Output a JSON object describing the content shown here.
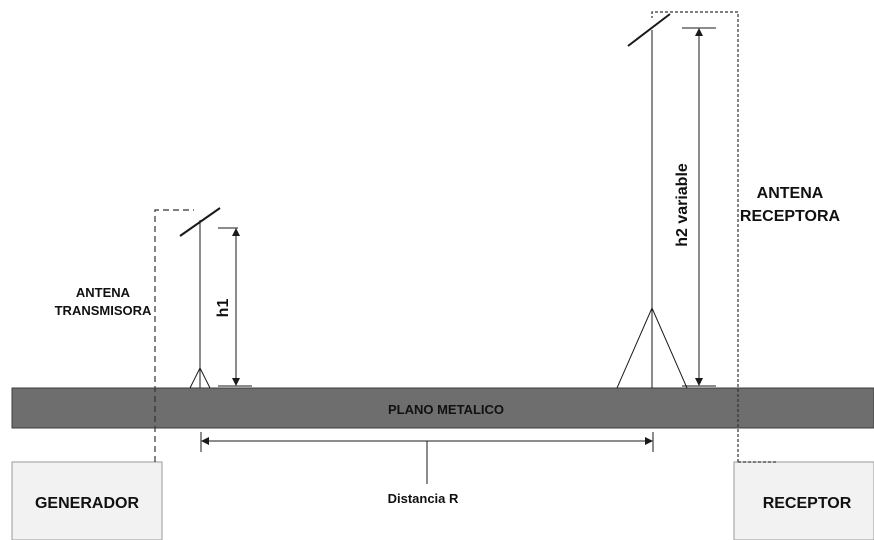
{
  "labels": {
    "plate": "PLANO METALICO",
    "tx_antenna_line1": "ANTENA",
    "tx_antenna_line2": "TRANSMISORA",
    "rx_antenna_line1": "ANTENA",
    "rx_antenna_line2": "RECEPTORA",
    "h1": "h1",
    "h2": "h2 variable",
    "distance": "Distancia R",
    "generator": "GENERADOR",
    "receiver": "RECEPTOR"
  },
  "colors": {
    "plate_fill": "#6e6e6e",
    "plate_stroke": "#3c3c3c",
    "box_fill": "#f2f2f2",
    "box_stroke": "#9a9a9a",
    "line": "#1a1a1a"
  }
}
